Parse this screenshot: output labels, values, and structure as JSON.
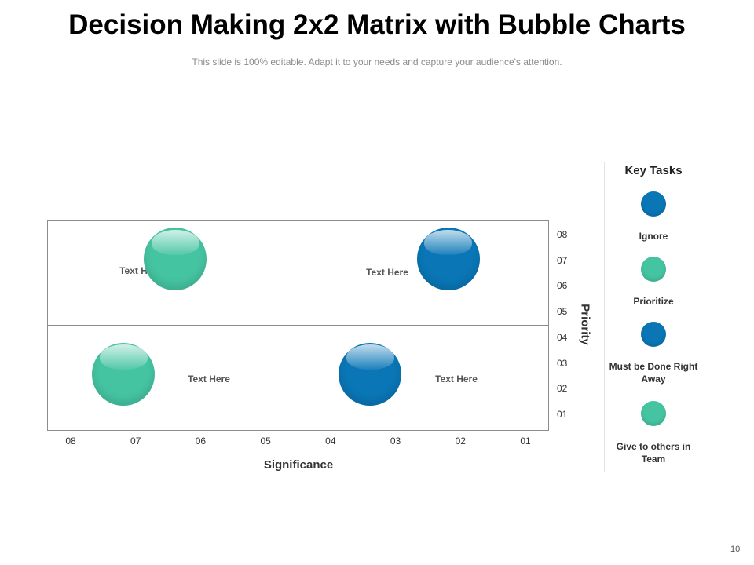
{
  "title": "Decision Making 2x2 Matrix with Bubble Charts",
  "subtitle": "This slide is 100% editable. Adapt it to your needs and capture your audience's attention.",
  "page_number": "10",
  "colors": {
    "teal": "#45c4a2",
    "blue": "#0a76b6"
  },
  "chart_data": {
    "type": "scatter",
    "xlabel": "Significance",
    "ylabel": "Priority",
    "x_ticks": [
      "08",
      "07",
      "06",
      "05",
      "04",
      "03",
      "02",
      "01"
    ],
    "y_ticks": [
      "08",
      "07",
      "06",
      "05",
      "04",
      "03",
      "02",
      "01"
    ],
    "xlim": [
      8,
      1
    ],
    "ylim": [
      1,
      8
    ],
    "grid": "2x2 quadrants",
    "legend_placement": "right",
    "quadrant_labels": [
      "Text Here",
      "Text Here",
      "Text Here",
      "Text Here"
    ],
    "bubbles": [
      {
        "x": 6.4,
        "y": 7.0,
        "color": "teal"
      },
      {
        "x": 2.2,
        "y": 7.0,
        "color": "blue"
      },
      {
        "x": 7.2,
        "y": 2.6,
        "color": "teal"
      },
      {
        "x": 3.4,
        "y": 2.6,
        "color": "blue"
      }
    ],
    "legend": {
      "title": "Key Tasks",
      "items": [
        {
          "label": "Ignore",
          "color": "blue"
        },
        {
          "label": "Prioritize",
          "color": "teal"
        },
        {
          "label": "Must be Done Right Away",
          "color": "blue"
        },
        {
          "label": "Give to others in Team",
          "color": "teal"
        }
      ]
    }
  }
}
